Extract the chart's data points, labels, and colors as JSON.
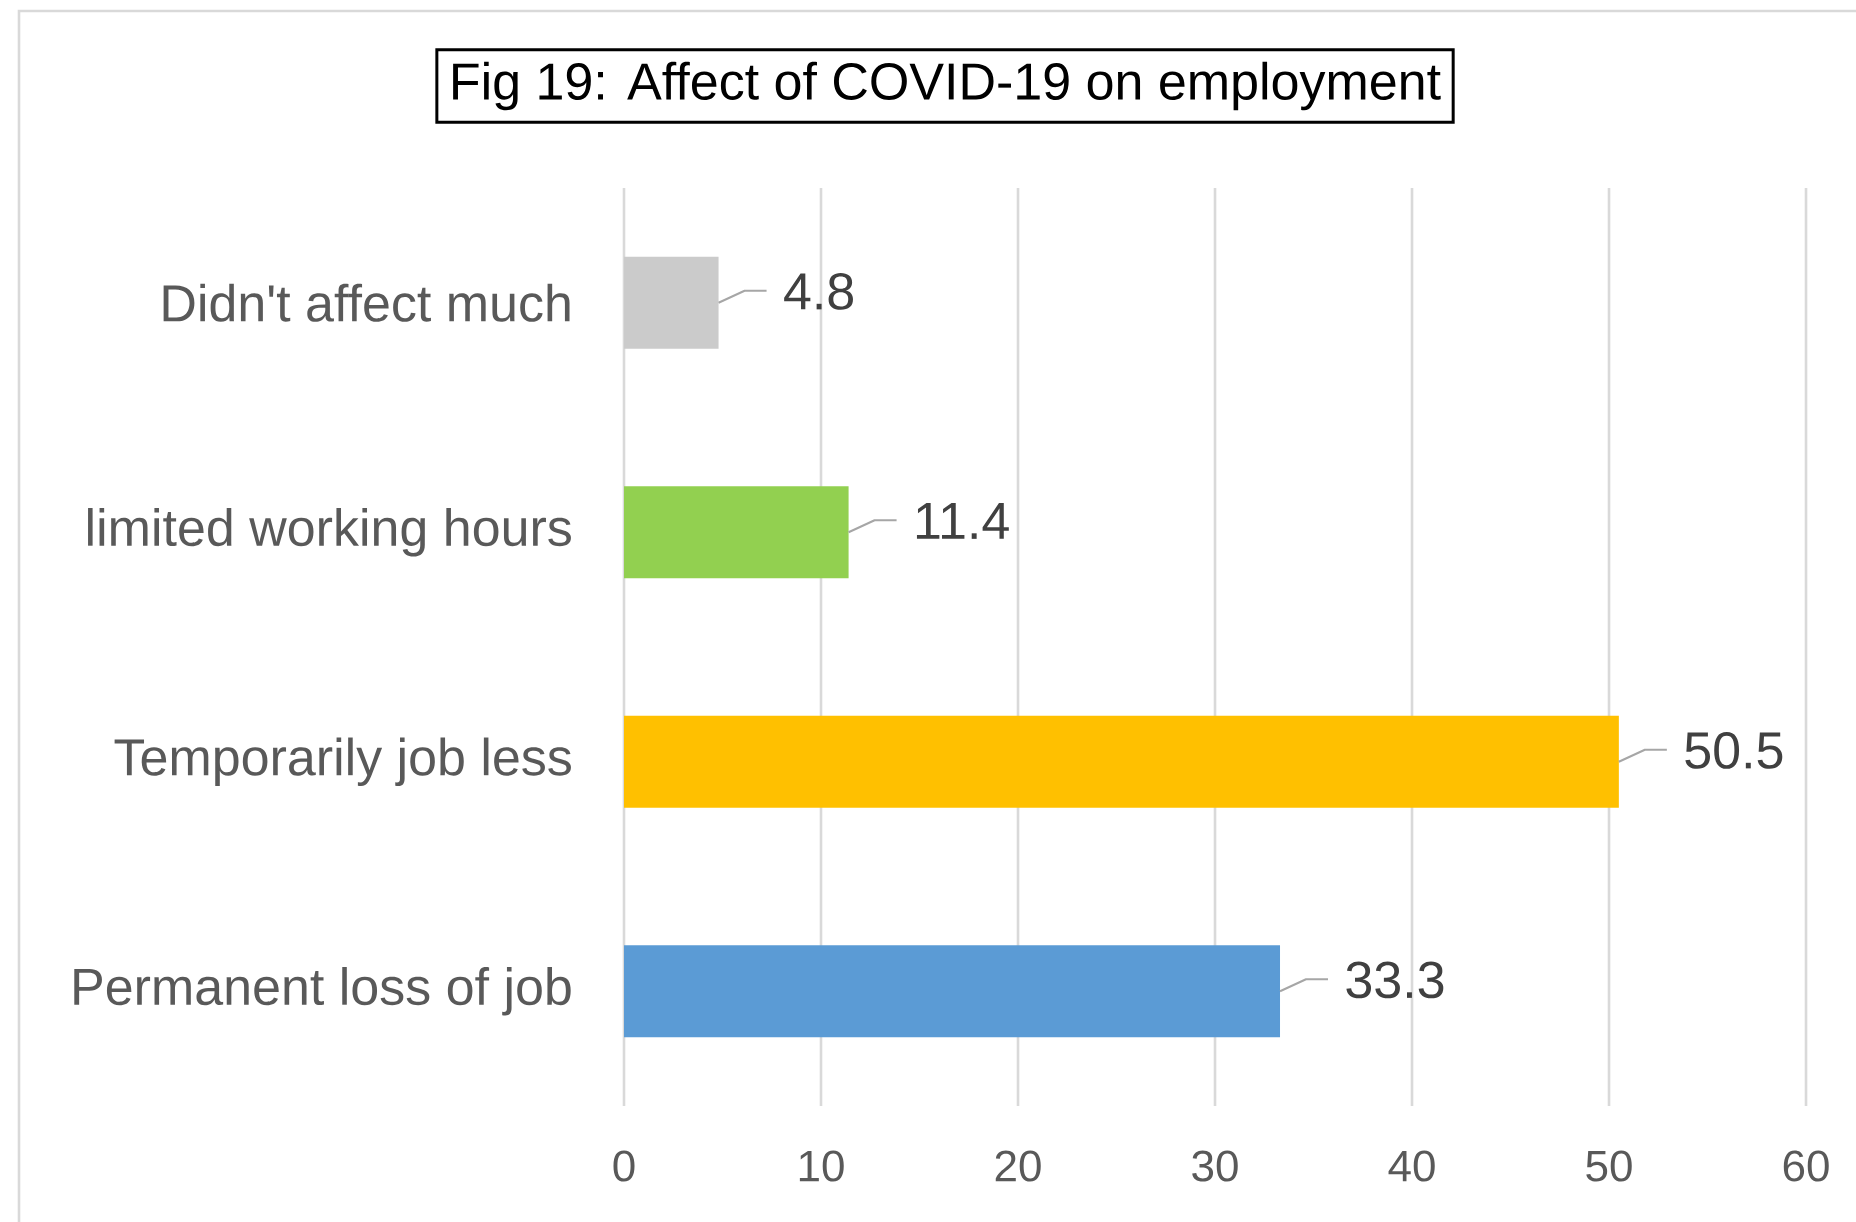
{
  "chart_data": {
    "type": "bar",
    "orientation": "horizontal",
    "title": "Fig 19: Affect of COVID-19 on employment",
    "categories": [
      "Didn't affect much",
      "limited working hours",
      "Temporarily job less",
      "Permanent loss of job"
    ],
    "values": [
      4.8,
      11.4,
      50.5,
      33.3
    ],
    "colors": [
      "#cbcbcb",
      "#92d050",
      "#ffc000",
      "#5b9bd5"
    ],
    "xlim": [
      0,
      60
    ],
    "xticks": [
      0,
      10,
      20,
      30,
      40,
      50,
      60
    ],
    "grid": "x",
    "data_labels": true
  }
}
